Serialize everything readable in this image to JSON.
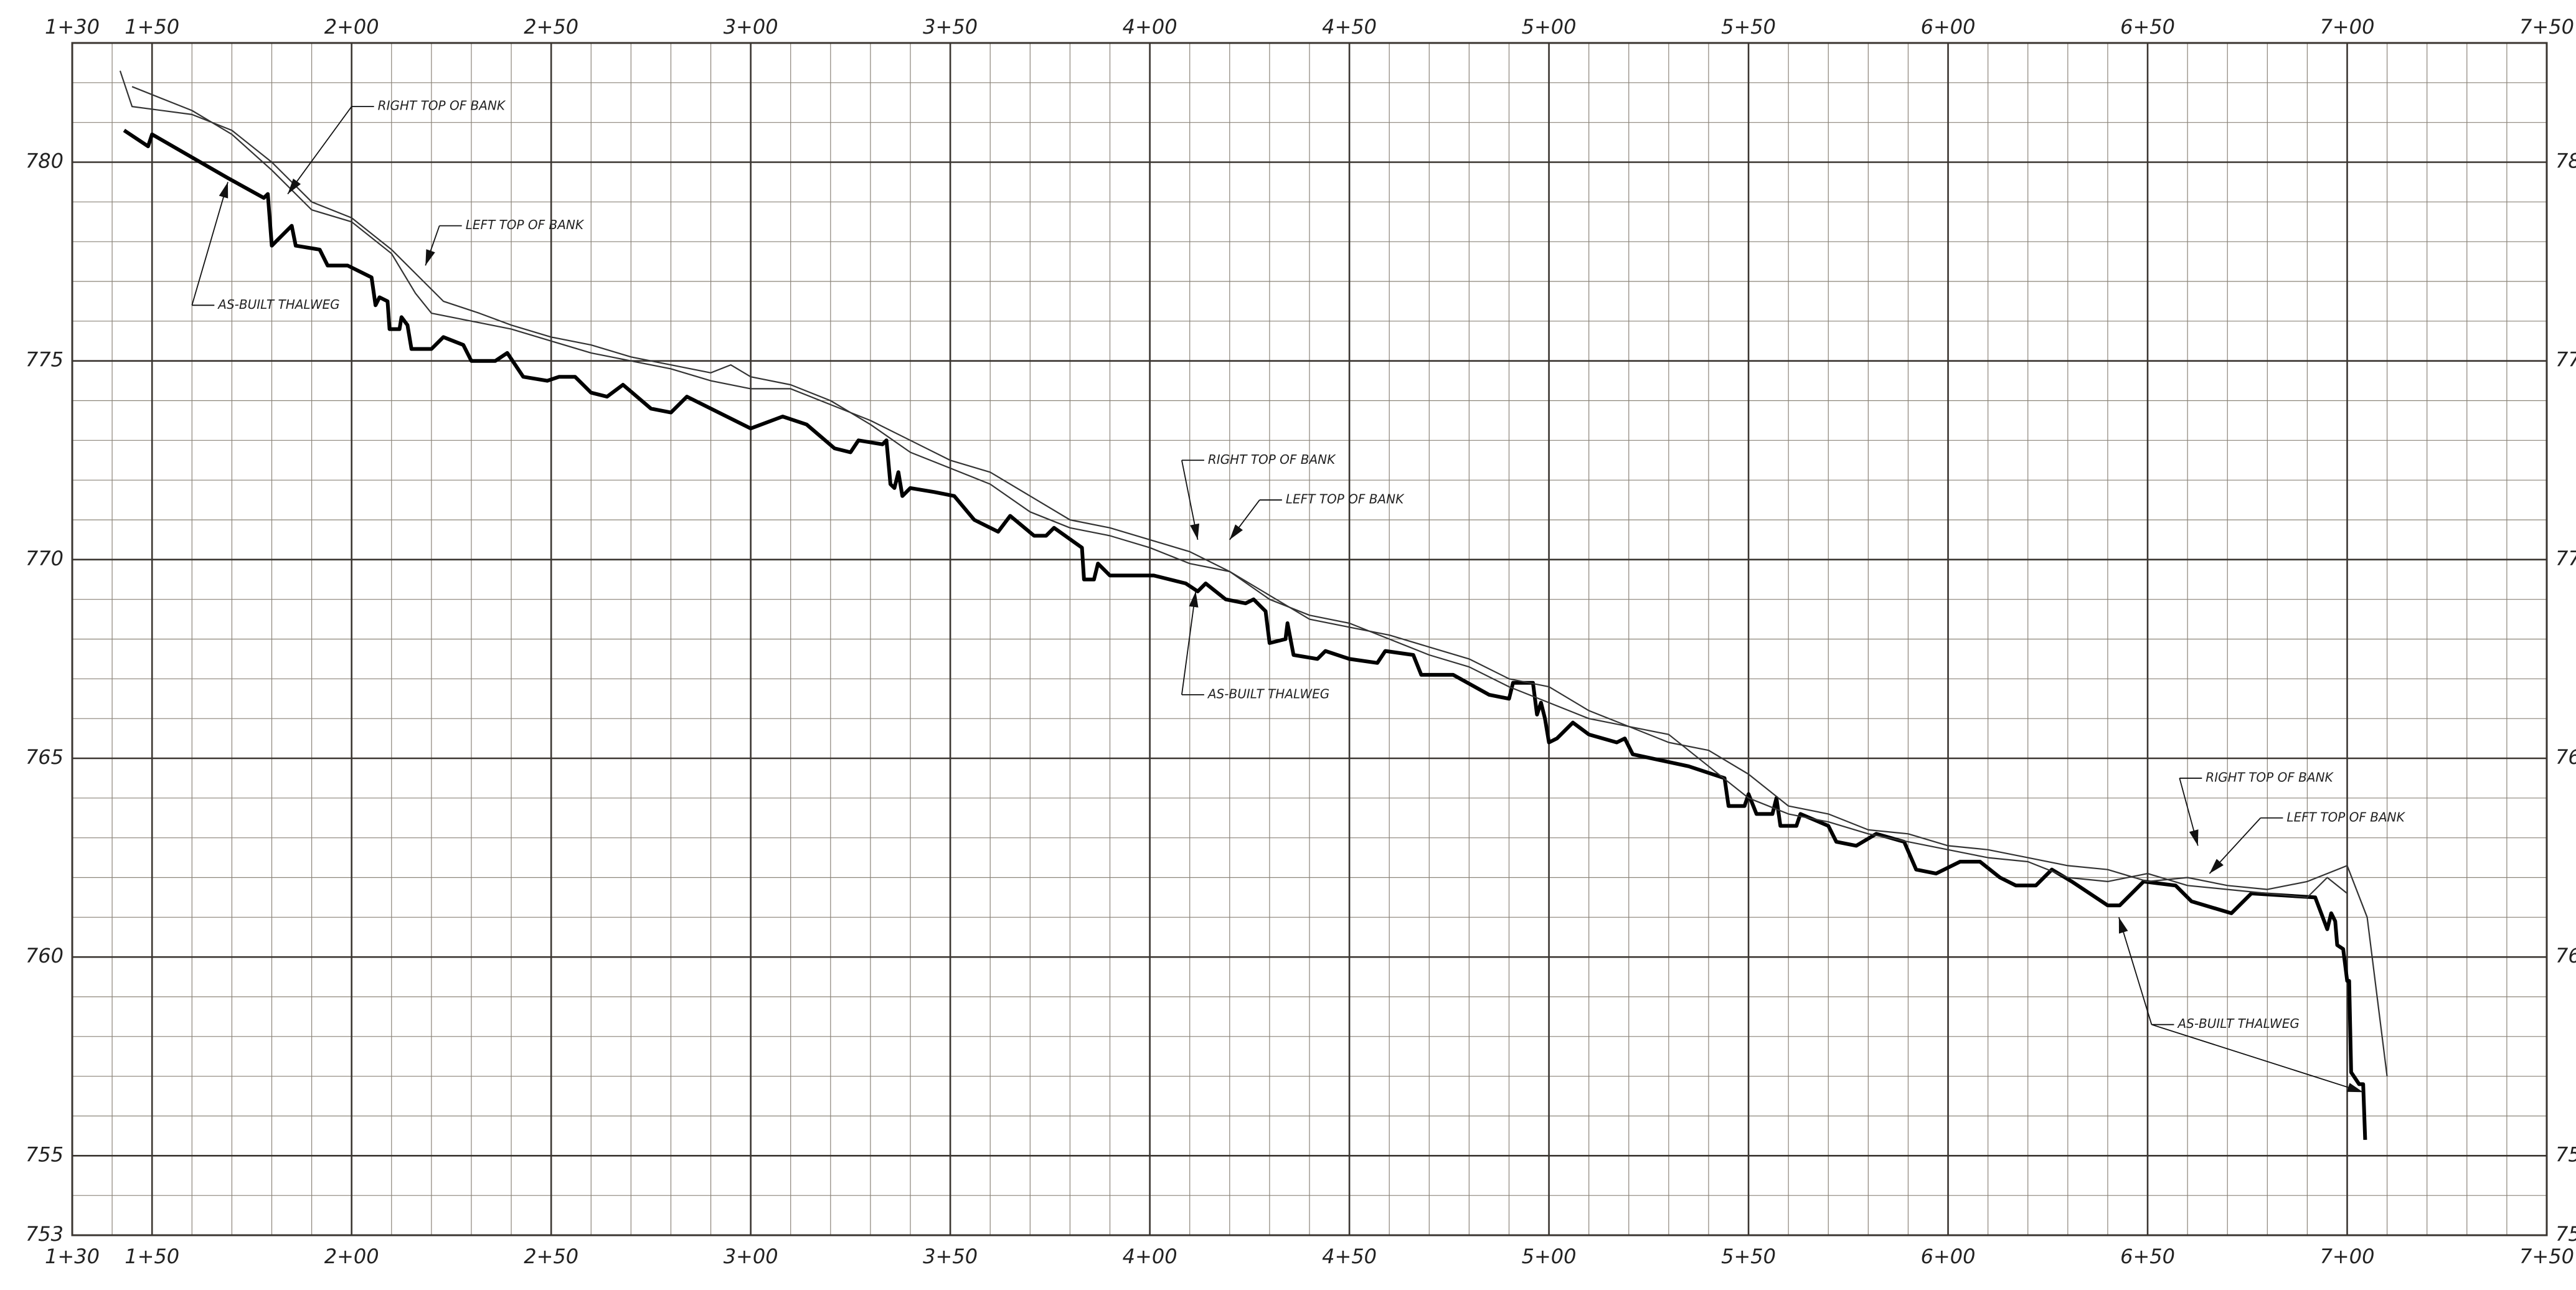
{
  "chart_data": {
    "type": "line",
    "xlim": [
      130,
      750
    ],
    "ylim": [
      753,
      783
    ],
    "xticks": [
      {
        "value": 130,
        "label": "1+30"
      },
      {
        "value": 150,
        "label": "1+50"
      },
      {
        "value": 200,
        "label": "2+00"
      },
      {
        "value": 250,
        "label": "2+50"
      },
      {
        "value": 300,
        "label": "3+00"
      },
      {
        "value": 350,
        "label": "3+50"
      },
      {
        "value": 400,
        "label": "4+00"
      },
      {
        "value": 450,
        "label": "4+50"
      },
      {
        "value": 500,
        "label": "5+00"
      },
      {
        "value": 550,
        "label": "5+50"
      },
      {
        "value": 600,
        "label": "6+00"
      },
      {
        "value": 650,
        "label": "6+50"
      },
      {
        "value": 700,
        "label": "7+00"
      },
      {
        "value": 750,
        "label": "7+50"
      }
    ],
    "yticks": [
      753,
      755,
      760,
      765,
      770,
      775,
      780
    ],
    "grid": true,
    "minor_grid": {
      "x": 10,
      "y": 1
    },
    "series": [
      {
        "color": "#000000",
        "x": [
          143,
          149,
          150,
          169,
          178,
          179,
          180,
          185,
          186,
          192,
          194,
          199,
          205,
          206,
          207,
          209,
          209.5,
          212,
          212.5,
          214,
          215,
          220,
          223,
          228,
          230,
          236,
          239,
          243,
          249,
          252,
          256,
          260,
          264,
          268,
          275,
          280,
          284,
          300,
          308,
          314,
          321,
          325,
          327,
          333,
          334,
          335,
          336,
          337,
          338,
          340,
          346,
          351,
          356,
          362,
          365,
          371,
          374,
          376,
          383,
          383.5,
          386,
          387,
          390,
          397,
          401,
          409,
          412,
          414,
          419,
          424,
          426,
          429,
          430,
          434,
          434.5,
          436,
          442,
          444,
          450,
          457,
          459,
          466,
          468,
          476,
          485,
          490,
          491,
          496,
          497,
          498,
          499,
          500,
          502,
          506,
          510,
          517,
          519,
          521,
          535,
          544,
          545,
          549,
          550,
          552,
          556,
          557,
          558,
          562,
          563,
          570,
          572,
          577,
          582,
          589,
          592,
          597,
          603,
          608,
          613,
          617,
          622,
          626,
          631,
          640,
          643,
          649,
          657,
          661,
          671,
          676,
          692,
          695,
          696,
          697,
          697.5,
          699,
          700,
          700.5,
          701,
          703,
          704,
          704.5
        ],
        "values": [
          780.8,
          780.4,
          780.7,
          779.6,
          779.1,
          779.2,
          777.9,
          778.4,
          777.9,
          777.8,
          777.4,
          777.4,
          777.1,
          776.4,
          776.6,
          776.5,
          775.8,
          775.8,
          776.1,
          775.9,
          775.3,
          775.3,
          775.6,
          775.4,
          775.0,
          775.0,
          775.2,
          774.6,
          774.5,
          774.6,
          774.6,
          774.2,
          774.1,
          774.4,
          773.8,
          773.7,
          774.1,
          773.3,
          773.6,
          773.4,
          772.8,
          772.7,
          773.0,
          772.9,
          773.0,
          771.9,
          771.8,
          772.2,
          771.6,
          771.8,
          771.7,
          771.6,
          771.0,
          770.7,
          771.1,
          770.6,
          770.6,
          770.8,
          770.3,
          769.5,
          769.5,
          769.9,
          769.6,
          769.6,
          769.6,
          769.4,
          769.2,
          769.4,
          769.0,
          768.9,
          769.0,
          768.7,
          767.9,
          768.0,
          768.4,
          767.6,
          767.5,
          767.7,
          767.5,
          767.4,
          767.7,
          767.6,
          767.1,
          767.1,
          766.6,
          766.5,
          766.9,
          766.9,
          766.1,
          766.4,
          766.0,
          765.4,
          765.5,
          765.9,
          765.6,
          765.4,
          765.5,
          765.1,
          764.8,
          764.5,
          763.8,
          763.8,
          764.1,
          763.6,
          763.6,
          764.0,
          763.3,
          763.3,
          763.6,
          763.3,
          762.9,
          762.8,
          763.1,
          762.9,
          762.2,
          762.1,
          762.4,
          762.4,
          762.0,
          761.8,
          761.8,
          762.2,
          761.9,
          761.3,
          761.3,
          761.9,
          761.8,
          761.4,
          761.1,
          761.6,
          761.5,
          760.7,
          761.1,
          760.9,
          760.3,
          760.2,
          759.4,
          759.4,
          757.1,
          756.8,
          756.8,
          755.4
        ]
      },
      {
        "color": "#333333",
        "x": [
          142,
          145,
          160,
          170,
          180,
          190,
          200,
          210,
          218,
          223,
          232,
          240,
          250,
          260,
          270,
          280,
          290,
          295,
          300,
          310,
          320,
          330,
          340,
          350,
          360,
          370,
          380,
          390,
          400,
          410,
          420,
          430,
          440,
          450,
          460,
          470,
          480,
          490,
          500,
          510,
          520,
          530,
          540,
          550,
          560,
          570,
          580,
          590,
          600,
          610,
          620,
          630,
          640,
          650,
          660,
          670,
          680,
          690,
          700,
          705,
          710
        ],
        "values": [
          782.3,
          781.4,
          781.2,
          780.8,
          780.0,
          779.0,
          778.6,
          777.8,
          777.0,
          776.5,
          776.2,
          775.9,
          775.6,
          775.4,
          775.1,
          774.9,
          774.7,
          774.9,
          774.6,
          774.4,
          774.0,
          773.4,
          772.7,
          772.3,
          771.9,
          771.2,
          770.8,
          770.6,
          770.3,
          769.9,
          769.7,
          769.1,
          768.5,
          768.3,
          768.1,
          767.8,
          767.5,
          767.0,
          766.8,
          766.2,
          765.8,
          765.4,
          765.2,
          764.6,
          763.8,
          763.6,
          763.2,
          763.1,
          762.8,
          762.7,
          762.5,
          762.3,
          762.2,
          761.9,
          762.0,
          761.8,
          761.7,
          761.9,
          762.3,
          761.0,
          757.0
        ]
      },
      {
        "color": "#333333",
        "x": [
          145,
          160,
          170,
          180,
          190,
          200,
          210,
          216,
          220,
          230,
          240,
          250,
          260,
          270,
          280,
          290,
          300,
          310,
          320,
          330,
          340,
          350,
          360,
          370,
          380,
          390,
          400,
          410,
          420,
          430,
          440,
          450,
          460,
          470,
          480,
          490,
          500,
          510,
          520,
          530,
          540,
          550,
          560,
          570,
          580,
          590,
          600,
          610,
          620,
          630,
          640,
          650,
          660,
          670,
          680,
          690,
          695,
          700
        ],
        "values": [
          781.9,
          781.3,
          780.7,
          779.8,
          778.8,
          778.5,
          777.7,
          776.7,
          776.2,
          776.0,
          775.8,
          775.5,
          775.2,
          775.0,
          774.8,
          774.5,
          774.3,
          774.3,
          773.9,
          773.5,
          773.0,
          772.5,
          772.2,
          771.6,
          771.0,
          770.8,
          770.5,
          770.2,
          769.7,
          769.0,
          768.6,
          768.4,
          768.0,
          767.6,
          767.3,
          766.8,
          766.4,
          766.0,
          765.8,
          765.6,
          764.8,
          764.0,
          763.6,
          763.4,
          763.1,
          762.9,
          762.7,
          762.5,
          762.4,
          762.0,
          761.9,
          762.1,
          761.8,
          761.7,
          761.6,
          761.5,
          762.0,
          761.6
        ]
      }
    ],
    "annotations": [
      {
        "text": "RIGHT TOP OF BANK",
        "at": [
          200,
          781.4
        ],
        "tips": [
          [
            184,
            779.2
          ]
        ]
      },
      {
        "text": "LEFT TOP OF BANK",
        "at": [
          222,
          778.4
        ],
        "tips": [
          [
            218.5,
            777.4
          ]
        ]
      },
      {
        "text": "AS-BUILT THALWEG",
        "at": [
          160,
          776.4
        ],
        "tips": [
          [
            169,
            779.5
          ]
        ]
      },
      {
        "text": "RIGHT TOP OF BANK",
        "at": [
          408,
          772.5
        ],
        "tips": [
          [
            412,
            770.5
          ]
        ]
      },
      {
        "text": "LEFT TOP OF BANK",
        "at": [
          427.5,
          771.5
        ],
        "tips": [
          [
            420,
            770.5
          ]
        ]
      },
      {
        "text": "AS-BUILT THALWEG",
        "at": [
          408,
          766.6
        ],
        "tips": [
          [
            411.5,
            769.2
          ]
        ]
      },
      {
        "text": "RIGHT TOP OF BANK",
        "at": [
          658,
          764.5
        ],
        "tips": [
          [
            662.6,
            762.8
          ]
        ]
      },
      {
        "text": "LEFT TOP OF BANK",
        "at": [
          678.3,
          763.5
        ],
        "tips": [
          [
            665.5,
            762.1
          ]
        ]
      },
      {
        "text": "AS-BUILT THALWEG",
        "at": [
          651,
          758.3
        ],
        "tips": [
          [
            642.8,
            761.0
          ],
          [
            704,
            756.6
          ]
        ]
      }
    ]
  }
}
